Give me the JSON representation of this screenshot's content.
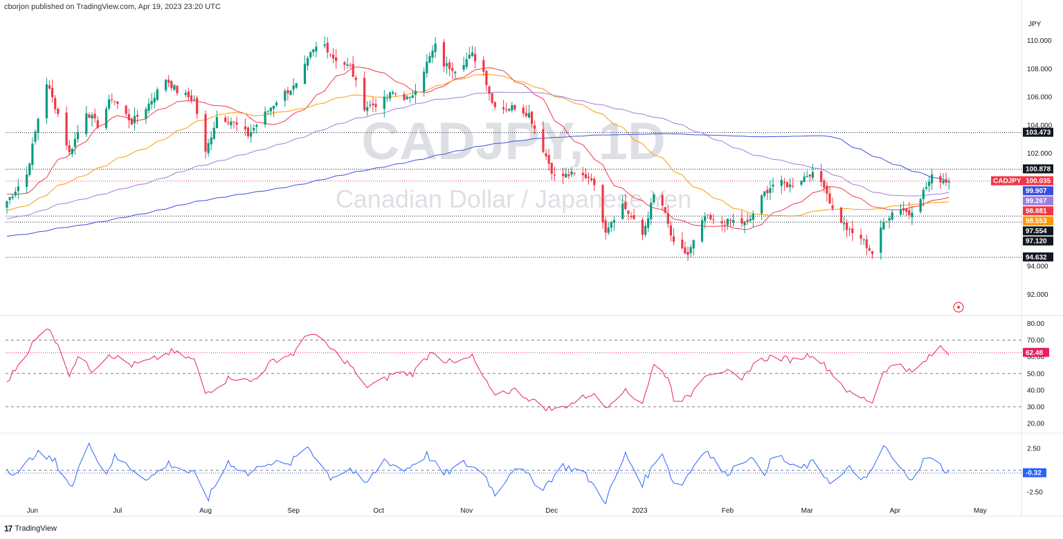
{
  "header": {
    "publisher": "cborjon published on TradingView.com, Apr 19, 2023 23:20 UTC"
  },
  "footer": {
    "brand_logo": "17",
    "brand_name": "TradingView"
  },
  "watermark": {
    "symbol": "CADJPY, 1D",
    "description": "Canadian Dollar / Japanese Yen"
  },
  "chart_data": [
    {
      "type": "candlestick",
      "title": "CADJPY, 1D",
      "subtitle": "Canadian Dollar / Japanese Yen",
      "currency_label": "JPY",
      "ylim": [
        90.6,
        111.7
      ],
      "y_ticks": [
        92.0,
        94.0,
        102.0,
        104.0,
        106.0,
        108.0,
        110.0
      ],
      "y_tick_labels": [
        "92.000",
        "94.000",
        "102.000",
        "104.000",
        "106.000",
        "108.000",
        "110.000"
      ],
      "x_labels": [
        "Jun",
        "Jul",
        "Aug",
        "Sep",
        "Oct",
        "Nov",
        "Dec",
        "2023",
        "Feb",
        "Mar",
        "Apr",
        "May"
      ],
      "close_anchors": [
        {
          "d": "May 23",
          "v": 98.6
        },
        {
          "d": "May 30",
          "v": 100.5
        },
        {
          "d": "Jun 3",
          "v": 104.5
        },
        {
          "d": "Jun 6",
          "v": 107.0
        },
        {
          "d": "Jun 10",
          "v": 104.8
        },
        {
          "d": "Jun 14",
          "v": 102.0
        },
        {
          "d": "Jun 20",
          "v": 105.0
        },
        {
          "d": "Jun 24",
          "v": 104.0
        },
        {
          "d": "Jun 29",
          "v": 106.0
        },
        {
          "d": "Jul 6",
          "v": 104.2
        },
        {
          "d": "Jul 12",
          "v": 105.5
        },
        {
          "d": "Jul 18",
          "v": 107.3
        },
        {
          "d": "Jul 22",
          "v": 106.4
        },
        {
          "d": "Jul 28",
          "v": 105.8
        },
        {
          "d": "Aug 1",
          "v": 102.0
        },
        {
          "d": "Aug 5",
          "v": 104.6
        },
        {
          "d": "Aug 10",
          "v": 104.3
        },
        {
          "d": "Aug 16",
          "v": 103.3
        },
        {
          "d": "Aug 22",
          "v": 104.8
        },
        {
          "d": "Aug 28",
          "v": 106.2
        },
        {
          "d": "Sep 2",
          "v": 106.8
        },
        {
          "d": "Sep 7",
          "v": 109.0
        },
        {
          "d": "Sep 11",
          "v": 110.0
        },
        {
          "d": "Sep 15",
          "v": 108.8
        },
        {
          "d": "Sep 21",
          "v": 108.1
        },
        {
          "d": "Sep 26",
          "v": 105.3
        },
        {
          "d": "Oct 2",
          "v": 105.6
        },
        {
          "d": "Oct 6",
          "v": 106.3
        },
        {
          "d": "Oct 12",
          "v": 105.8
        },
        {
          "d": "Oct 18",
          "v": 108.4
        },
        {
          "d": "Oct 21",
          "v": 109.6
        },
        {
          "d": "Oct 24",
          "v": 108.3
        },
        {
          "d": "Oct 28",
          "v": 108.0
        },
        {
          "d": "Nov 3",
          "v": 109.0
        },
        {
          "d": "Nov 7",
          "v": 107.8
        },
        {
          "d": "Nov 10",
          "v": 105.6
        },
        {
          "d": "Nov 14",
          "v": 105.2
        },
        {
          "d": "Nov 18",
          "v": 105.3
        },
        {
          "d": "Nov 23",
          "v": 104.8
        },
        {
          "d": "Nov 28",
          "v": 102.3
        },
        {
          "d": "Dec 2",
          "v": 100.3
        },
        {
          "d": "Dec 8",
          "v": 100.5
        },
        {
          "d": "Dec 15",
          "v": 100.3
        },
        {
          "d": "Dec 20",
          "v": 96.6
        },
        {
          "d": "Dec 26",
          "v": 98.4
        },
        {
          "d": "Jan 2",
          "v": 96.2
        },
        {
          "d": "Jan 6",
          "v": 99.0
        },
        {
          "d": "Jan 9",
          "v": 98.3
        },
        {
          "d": "Jan 13",
          "v": 95.5
        },
        {
          "d": "Jan 18",
          "v": 94.8
        },
        {
          "d": "Jan 24",
          "v": 97.5
        },
        {
          "d": "Jan 28",
          "v": 97.0
        },
        {
          "d": "Feb 3",
          "v": 97.2
        },
        {
          "d": "Feb 8",
          "v": 97.0
        },
        {
          "d": "Feb 14",
          "v": 99.2
        },
        {
          "d": "Feb 18",
          "v": 100.0
        },
        {
          "d": "Feb 23",
          "v": 99.7
        },
        {
          "d": "Mar 2",
          "v": 100.6
        },
        {
          "d": "Mar 7",
          "v": 99.8
        },
        {
          "d": "Mar 10",
          "v": 98.0
        },
        {
          "d": "Mar 16",
          "v": 96.4
        },
        {
          "d": "Mar 20",
          "v": 96.0
        },
        {
          "d": "Mar 24",
          "v": 94.9
        },
        {
          "d": "Mar 28",
          "v": 97.1
        },
        {
          "d": "Apr 2",
          "v": 98.3
        },
        {
          "d": "Apr 6",
          "v": 97.7
        },
        {
          "d": "Apr 11",
          "v": 99.3
        },
        {
          "d": "Apr 14",
          "v": 100.3
        },
        {
          "d": "Apr 18",
          "v": 100.1
        },
        {
          "d": "Apr 20",
          "v": 100.035
        }
      ],
      "moving_averages": [
        {
          "name": "MA 20",
          "color": "#f23645",
          "last": 98.881
        },
        {
          "name": "MA 50",
          "color": "#ff9800",
          "last": 98.553
        },
        {
          "name": "MA 100",
          "color": "#9c7ce0",
          "last": 99.267
        },
        {
          "name": "MA 200",
          "color": "#3b4ede",
          "last": 99.907
        }
      ],
      "horizontal_levels": [
        103.473,
        100.878,
        97.554,
        97.12,
        94.632
      ],
      "price_tags": [
        {
          "value": 103.473,
          "label": "103.473",
          "bg": "#131722",
          "fg": "#ffffff"
        },
        {
          "value": 100.878,
          "label": "100.878",
          "bg": "#131722",
          "fg": "#ffffff"
        },
        {
          "value": 100.035,
          "label": "100.035",
          "symbol": "CADJPY",
          "bg": "#f23645",
          "fg": "#ffffff"
        },
        {
          "value": 99.907,
          "label": "99.907",
          "bg": "#3b4ede",
          "fg": "#ffffff"
        },
        {
          "value": 99.267,
          "label": "99.267",
          "bg": "#9c7ce0",
          "fg": "#ffffff"
        },
        {
          "value": 98.881,
          "label": "98.881",
          "bg": "#f23645",
          "fg": "#ffffff"
        },
        {
          "value": 98.553,
          "label": "98.553",
          "bg": "#ff9800",
          "fg": "#ffffff"
        },
        {
          "value": 97.554,
          "label": "97.554",
          "bg": "#131722",
          "fg": "#ffffff"
        },
        {
          "value": 97.12,
          "label": "97.120",
          "bg": "#131722",
          "fg": "#ffffff"
        },
        {
          "value": 94.632,
          "label": "94.632",
          "bg": "#131722",
          "fg": "#ffffff"
        }
      ],
      "colors": {
        "up": "#089981",
        "down": "#f23645"
      }
    },
    {
      "type": "line",
      "indicator": "RSI",
      "ylim": [
        15,
        84
      ],
      "y_ticks": [
        20,
        30,
        40,
        50,
        60,
        70,
        80
      ],
      "y_tick_labels": [
        "20.00",
        "30.00",
        "40.00",
        "50.00",
        "60.00",
        "70.00",
        "80.00"
      ],
      "bands": [
        70,
        50,
        30
      ],
      "last": 62.48,
      "last_label": "62.48",
      "color": "#e91e63",
      "anchors": [
        {
          "d": "May 23",
          "v": 45
        },
        {
          "d": "Jun 1",
          "v": 68
        },
        {
          "d": "Jun 7",
          "v": 78
        },
        {
          "d": "Jun 14",
          "v": 50
        },
        {
          "d": "Jun 17",
          "v": 60
        },
        {
          "d": "Jun 22",
          "v": 52
        },
        {
          "d": "Jun 28",
          "v": 62
        },
        {
          "d": "Jul 6",
          "v": 55
        },
        {
          "d": "Jul 13",
          "v": 58
        },
        {
          "d": "Jul 20",
          "v": 63
        },
        {
          "d": "Jul 28",
          "v": 58
        },
        {
          "d": "Aug 1",
          "v": 38
        },
        {
          "d": "Aug 10",
          "v": 48
        },
        {
          "d": "Aug 17",
          "v": 45
        },
        {
          "d": "Aug 25",
          "v": 58
        },
        {
          "d": "Sep 1",
          "v": 62
        },
        {
          "d": "Sep 7",
          "v": 75
        },
        {
          "d": "Sep 14",
          "v": 65
        },
        {
          "d": "Sep 21",
          "v": 55
        },
        {
          "d": "Sep 26",
          "v": 42
        },
        {
          "d": "Oct 2",
          "v": 45
        },
        {
          "d": "Oct 6",
          "v": 50
        },
        {
          "d": "Oct 13",
          "v": 50
        },
        {
          "d": "Oct 20",
          "v": 64
        },
        {
          "d": "Oct 24",
          "v": 58
        },
        {
          "d": "Oct 28",
          "v": 56
        },
        {
          "d": "Nov 3",
          "v": 60
        },
        {
          "d": "Nov 10",
          "v": 38
        },
        {
          "d": "Nov 18",
          "v": 40
        },
        {
          "d": "Nov 28",
          "v": 30
        },
        {
          "d": "Dec 2",
          "v": 28
        },
        {
          "d": "Dec 8",
          "v": 32
        },
        {
          "d": "Dec 15",
          "v": 38
        },
        {
          "d": "Dec 20",
          "v": 30
        },
        {
          "d": "Dec 26",
          "v": 40
        },
        {
          "d": "Jan 2",
          "v": 33
        },
        {
          "d": "Jan 6",
          "v": 55
        },
        {
          "d": "Jan 11",
          "v": 48
        },
        {
          "d": "Jan 13",
          "v": 35
        },
        {
          "d": "Jan 18",
          "v": 35
        },
        {
          "d": "Jan 24",
          "v": 50
        },
        {
          "d": "Jan 31",
          "v": 52
        },
        {
          "d": "Feb 6",
          "v": 45
        },
        {
          "d": "Feb 10",
          "v": 56
        },
        {
          "d": "Feb 16",
          "v": 60
        },
        {
          "d": "Feb 24",
          "v": 58
        },
        {
          "d": "Mar 3",
          "v": 62
        },
        {
          "d": "Mar 10",
          "v": 50
        },
        {
          "d": "Mar 16",
          "v": 38
        },
        {
          "d": "Mar 24",
          "v": 33
        },
        {
          "d": "Mar 28",
          "v": 52
        },
        {
          "d": "Apr 3",
          "v": 56
        },
        {
          "d": "Apr 7",
          "v": 50
        },
        {
          "d": "Apr 12",
          "v": 58
        },
        {
          "d": "Apr 17",
          "v": 66
        },
        {
          "d": "Apr 20",
          "v": 62.48
        }
      ]
    },
    {
      "type": "line",
      "indicator": "Oscillator",
      "ylim": [
        -5.1,
        4.1
      ],
      "y_ticks": [
        -2.5,
        2.5
      ],
      "y_tick_labels": [
        "-2.50",
        "2.50"
      ],
      "zero_line": 0,
      "last": -0.32,
      "last_label": "-0.32",
      "color": "#2962ff",
      "anchors": [
        {
          "d": "May 23",
          "v": 0.2
        },
        {
          "d": "May 27",
          "v": -0.5
        },
        {
          "d": "Jun 2",
          "v": 2.0
        },
        {
          "d": "Jun 9",
          "v": 1.0
        },
        {
          "d": "Jun 15",
          "v": -2.0
        },
        {
          "d": "Jun 21",
          "v": 3.5
        },
        {
          "d": "Jun 26",
          "v": -0.8
        },
        {
          "d": "Jun 30",
          "v": 1.5
        },
        {
          "d": "Jul 6",
          "v": 0.2
        },
        {
          "d": "Jul 12",
          "v": -1.0
        },
        {
          "d": "Jul 19",
          "v": 0.8
        },
        {
          "d": "Jul 28",
          "v": -0.5
        },
        {
          "d": "Aug 2",
          "v": -3.2
        },
        {
          "d": "Aug 9",
          "v": 1.0
        },
        {
          "d": "Aug 16",
          "v": -0.5
        },
        {
          "d": "Aug 23",
          "v": 1.0
        },
        {
          "d": "Aug 30",
          "v": 0.5
        },
        {
          "d": "Sep 6",
          "v": 2.8
        },
        {
          "d": "Sep 14",
          "v": -0.8
        },
        {
          "d": "Sep 21",
          "v": 0.2
        },
        {
          "d": "Sep 26",
          "v": -1.8
        },
        {
          "d": "Oct 3",
          "v": 1.2
        },
        {
          "d": "Oct 10",
          "v": 0.0
        },
        {
          "d": "Oct 18",
          "v": 1.8
        },
        {
          "d": "Oct 24",
          "v": -0.5
        },
        {
          "d": "Oct 31",
          "v": 0.8
        },
        {
          "d": "Nov 7",
          "v": -0.2
        },
        {
          "d": "Nov 11",
          "v": -2.8
        },
        {
          "d": "Nov 18",
          "v": 0.5
        },
        {
          "d": "Nov 28",
          "v": -2.0
        },
        {
          "d": "Dec 5",
          "v": 0.5
        },
        {
          "d": "Dec 12",
          "v": -0.2
        },
        {
          "d": "Dec 20",
          "v": -3.5
        },
        {
          "d": "Dec 27",
          "v": 1.8
        },
        {
          "d": "Jan 2",
          "v": -1.5
        },
        {
          "d": "Jan 9",
          "v": 2.2
        },
        {
          "d": "Jan 14",
          "v": -2.5
        },
        {
          "d": "Jan 24",
          "v": 2.5
        },
        {
          "d": "Jan 31",
          "v": -0.5
        },
        {
          "d": "Feb 8",
          "v": 1.5
        },
        {
          "d": "Feb 14",
          "v": -0.2
        },
        {
          "d": "Feb 18",
          "v": 2.0
        },
        {
          "d": "Feb 25",
          "v": 0.0
        },
        {
          "d": "Mar 3",
          "v": 0.8
        },
        {
          "d": "Mar 10",
          "v": -1.5
        },
        {
          "d": "Mar 16",
          "v": 0.2
        },
        {
          "d": "Mar 22",
          "v": -1.2
        },
        {
          "d": "Mar 28",
          "v": 2.8
        },
        {
          "d": "Apr 3",
          "v": 0.0
        },
        {
          "d": "Apr 7",
          "v": -0.8
        },
        {
          "d": "Apr 12",
          "v": 1.5
        },
        {
          "d": "Apr 17",
          "v": 0.5
        },
        {
          "d": "Apr 20",
          "v": -0.32
        }
      ]
    }
  ]
}
